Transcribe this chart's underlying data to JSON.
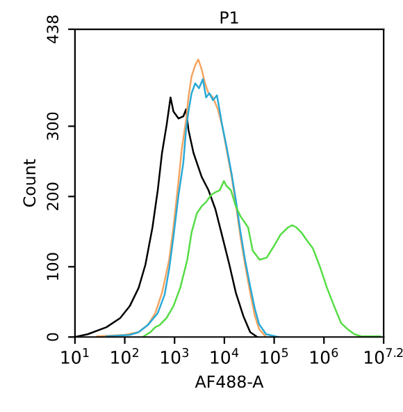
{
  "chart_data": {
    "type": "line",
    "title": "P1",
    "xlabel": "AF488-A",
    "ylabel": "Count",
    "log": "x",
    "grid": false,
    "marker": "none",
    "line_style": "solid",
    "xlim": [
      10,
      15800000
    ],
    "xticks": [
      {
        "value": 10,
        "label": "10$^{1}$"
      },
      {
        "value": 100,
        "label": "10$^{2}$"
      },
      {
        "value": 1000,
        "label": "10$^{3}$"
      },
      {
        "value": 10000,
        "label": "10$^{4}$"
      },
      {
        "value": 100000,
        "label": "10$^{5}$"
      },
      {
        "value": 1000000,
        "label": "10$^{6}$"
      },
      {
        "value": 15800000,
        "label": "10$^{7.2}$"
      }
    ],
    "ylim": [
      0,
      438
    ],
    "yticks": [
      0,
      100,
      200,
      300,
      438
    ],
    "series": [
      {
        "color": "#000000",
        "x": [
          10.0,
          18.0,
          43.0,
          81.0,
          126.0,
          190.0,
          260.0,
          360.0,
          460.0,
          560.0,
          690.0,
          830.0,
          950.0,
          1200.0,
          1500.0,
          1700.0,
          1900.0,
          2400.0,
          3500.0,
          4800.0,
          6600.0,
          9100.0,
          12600.0,
          17000.0,
          24000.0,
          33000.0,
          46000.0
        ],
        "values": [
          0,
          4,
          14,
          27,
          44,
          70,
          103,
          156,
          209,
          262,
          301,
          341,
          321,
          311,
          314,
          324,
          295,
          262,
          228,
          209,
          182,
          143,
          103,
          63,
          30,
          7,
          0
        ]
      },
      {
        "color": "#f4a460",
        "x": [
          28.0,
          100.0,
          190.0,
          290.0,
          410.0,
          560.0,
          780.0,
          950.0,
          1200.0,
          1400.0,
          1700.0,
          1900.0,
          2200.0,
          2600.0,
          3000.0,
          3500.0,
          4100.0,
          4800.0,
          5900.0,
          7400.0,
          9100.0,
          11000.0,
          14000.0,
          17000.0,
          21000.0,
          26000.0,
          33000.0,
          41000.0,
          50000.0,
          69000.0
        ],
        "values": [
          1,
          3,
          7,
          17,
          34,
          63,
          110,
          156,
          222,
          268,
          308,
          341,
          371,
          387,
          395,
          381,
          361,
          347,
          341,
          324,
          300,
          268,
          228,
          189,
          143,
          103,
          63,
          30,
          11,
          0
        ]
      },
      {
        "color": "#29a9d6",
        "x": [
          43.0,
          126.0,
          190.0,
          290.0,
          460.0,
          630.0,
          780.0,
          950.0,
          1200.0,
          1500.0,
          1700.0,
          1900.0,
          2200.0,
          2600.0,
          3100.0,
          3700.0,
          4300.0,
          5000.0,
          5900.0,
          7100.0,
          8100.0,
          9100.0,
          11000.0,
          14000.0,
          17000.0,
          21000.0,
          26000.0,
          33000.0,
          41000.0,
          50000.0,
          69000.0,
          120000.0
        ],
        "values": [
          1,
          3,
          7,
          17,
          34,
          60,
          97,
          143,
          202,
          248,
          295,
          321,
          347,
          361,
          354,
          367,
          341,
          347,
          337,
          344,
          321,
          300,
          272,
          232,
          195,
          150,
          110,
          72,
          40,
          18,
          4,
          0
        ]
      },
      {
        "color": "#55dd44",
        "x": [
          240.0,
          330.0,
          410.0,
          500.0,
          690.0,
          950.0,
          1300.0,
          1800.0,
          2200.0,
          2800.0,
          3500.0,
          4300.0,
          5400.0,
          6600.0,
          8100.0,
          9800.0,
          11000.0,
          13500.0,
          17000.0,
          21000.0,
          30000.0,
          37000.0,
          51000.0,
          71000.0,
          98000.0,
          135000.0,
          190000.0,
          230000.0,
          280000.0,
          350000.0,
          440000.0,
          600000.0,
          830000.0,
          1150000.0,
          1600000.0,
          2200000.0,
          3000000.0,
          4100000.0,
          5600000.0,
          13500000.0
        ],
        "values": [
          1,
          7,
          14,
          17,
          27,
          44,
          70,
          110,
          149,
          176,
          186,
          192,
          202,
          206,
          209,
          222,
          215,
          209,
          186,
          172,
          156,
          123,
          110,
          113,
          129,
          146,
          156,
          159,
          156,
          149,
          139,
          126,
          100,
          70,
          44,
          20,
          11,
          4,
          1,
          1
        ]
      }
    ]
  }
}
